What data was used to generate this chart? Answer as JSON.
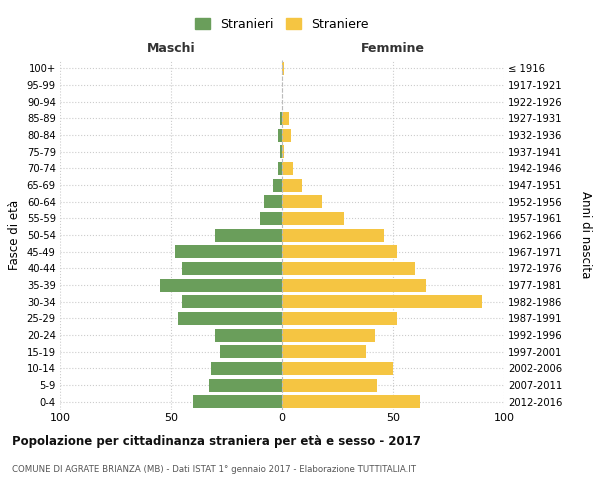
{
  "age_groups": [
    "0-4",
    "5-9",
    "10-14",
    "15-19",
    "20-24",
    "25-29",
    "30-34",
    "35-39",
    "40-44",
    "45-49",
    "50-54",
    "55-59",
    "60-64",
    "65-69",
    "70-74",
    "75-79",
    "80-84",
    "85-89",
    "90-94",
    "95-99",
    "100+"
  ],
  "birth_years": [
    "2012-2016",
    "2007-2011",
    "2002-2006",
    "1997-2001",
    "1992-1996",
    "1987-1991",
    "1982-1986",
    "1977-1981",
    "1972-1976",
    "1967-1971",
    "1962-1966",
    "1957-1961",
    "1952-1956",
    "1947-1951",
    "1942-1946",
    "1937-1941",
    "1932-1936",
    "1927-1931",
    "1922-1926",
    "1917-1921",
    "≤ 1916"
  ],
  "maschi": [
    40,
    33,
    32,
    28,
    30,
    47,
    45,
    55,
    45,
    48,
    30,
    10,
    8,
    4,
    2,
    1,
    2,
    1,
    0,
    0,
    0
  ],
  "femmine": [
    62,
    43,
    50,
    38,
    42,
    52,
    90,
    65,
    60,
    52,
    46,
    28,
    18,
    9,
    5,
    1,
    4,
    3,
    0,
    0,
    1
  ],
  "color_maschi": "#6a9e5b",
  "color_femmine": "#f5c542",
  "background_color": "#ffffff",
  "grid_color": "#cccccc",
  "title": "Popolazione per cittadinanza straniera per età e sesso - 2017",
  "subtitle": "COMUNE DI AGRATE BRIANZA (MB) - Dati ISTAT 1° gennaio 2017 - Elaborazione TUTTITALIA.IT",
  "ylabel_left": "Fasce di età",
  "ylabel_right": "Anni di nascita",
  "xlabel_left": "Maschi",
  "xlabel_right": "Femmine",
  "legend_maschi": "Stranieri",
  "legend_femmine": "Straniere",
  "xlim": 100
}
